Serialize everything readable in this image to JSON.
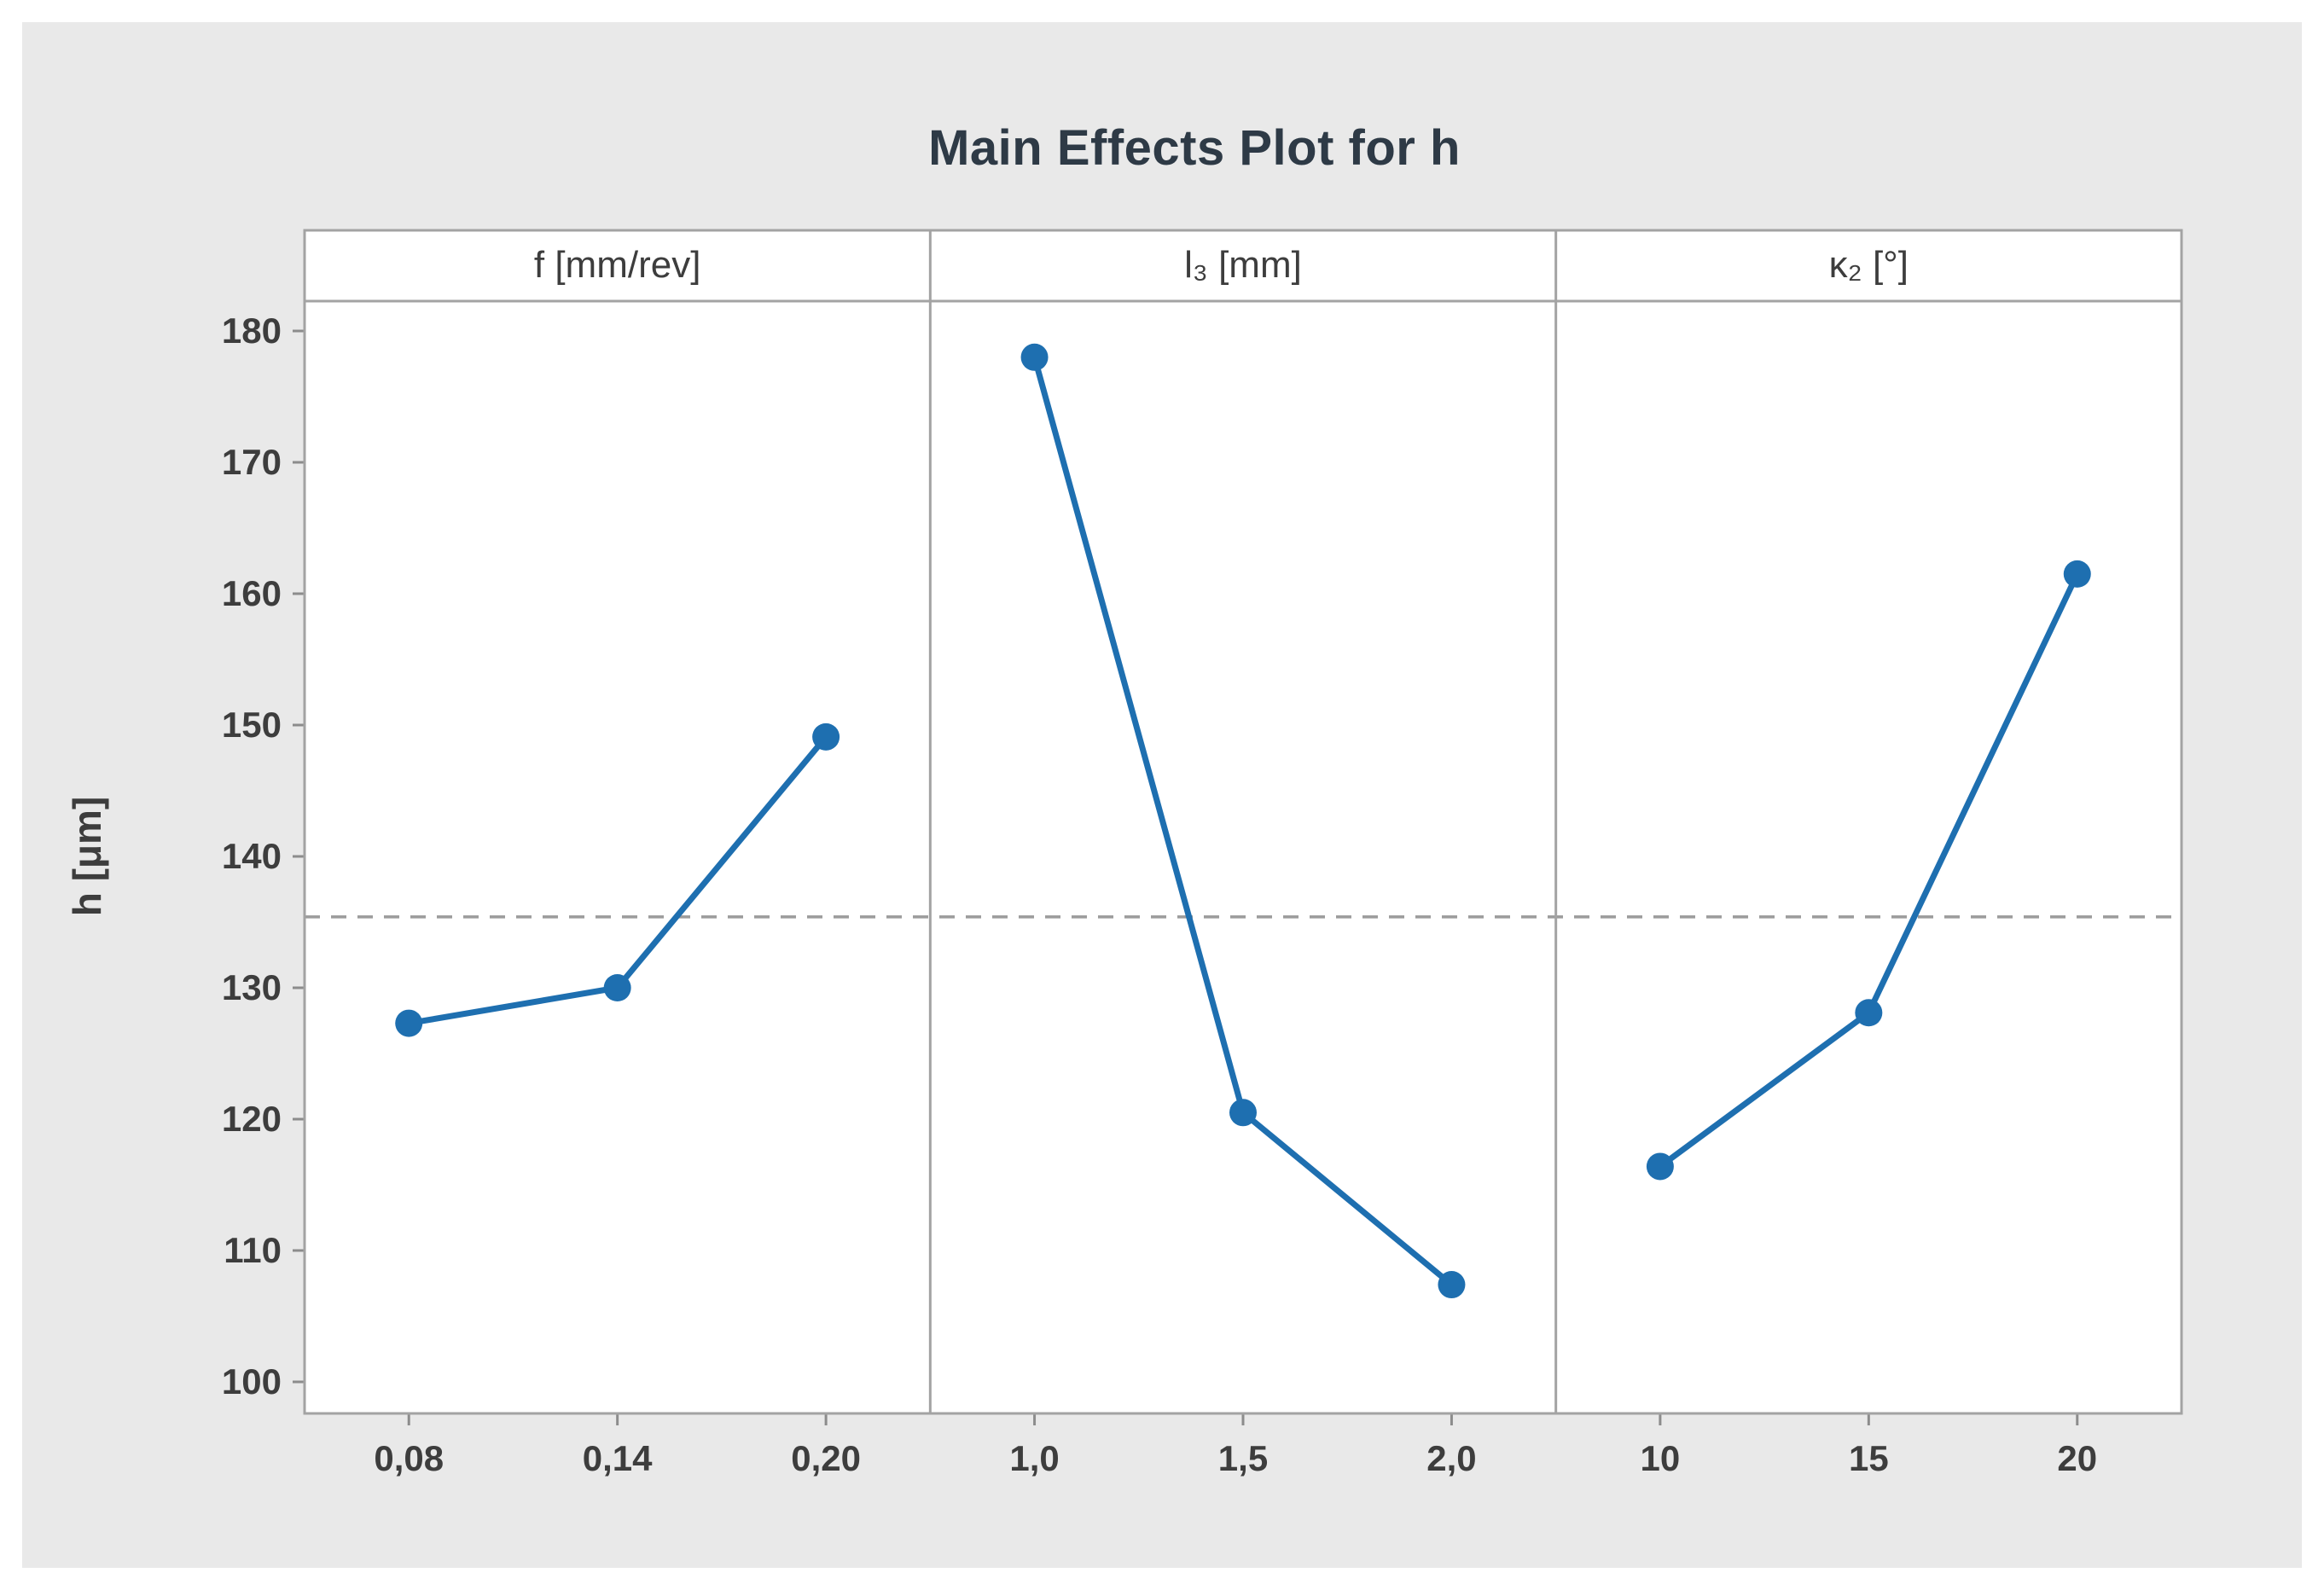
{
  "title": "Main Effects Plot for h",
  "chart_data": {
    "type": "line",
    "title": "Main Effects Plot for h",
    "subtitle": "",
    "ylabel": "h [μm]",
    "xlabel": "",
    "ylim": [
      100,
      180
    ],
    "y_ticks": [
      100,
      110,
      120,
      130,
      140,
      150,
      160,
      170,
      180
    ],
    "grid": false,
    "legend": "none",
    "layout": "3 side-by-side panels sharing one y axis",
    "decimal_separator": ",",
    "reference_line": 135.4,
    "reference_line_style": "dashed",
    "panels": [
      {
        "header": "f [mm/rev]",
        "x_labels": [
          "0,08",
          "0,14",
          "0,20"
        ],
        "x_values": [
          0.08,
          0.14,
          0.2
        ],
        "values": [
          127.3,
          130.0,
          149.1
        ]
      },
      {
        "header": "l₃ [mm]",
        "x_labels": [
          "1,0",
          "1,5",
          "2,0"
        ],
        "x_values": [
          1.0,
          1.5,
          2.0
        ],
        "values": [
          178.0,
          120.5,
          107.4
        ]
      },
      {
        "header": "κ₂ [°]",
        "x_labels": [
          "10",
          "15",
          "20"
        ],
        "x_values": [
          10,
          15,
          20
        ],
        "values": [
          116.4,
          128.1,
          161.5
        ]
      }
    ]
  },
  "colors": {
    "series": "#1e6fb0",
    "reference_line": "#9b9b9b",
    "panel_background": "#ffffff",
    "card_background": "#e9e9e9",
    "border": "#a3a3a3",
    "tick": "#8c8c8c",
    "text": "#3d3d3d",
    "title_text": "#2e3a46"
  }
}
